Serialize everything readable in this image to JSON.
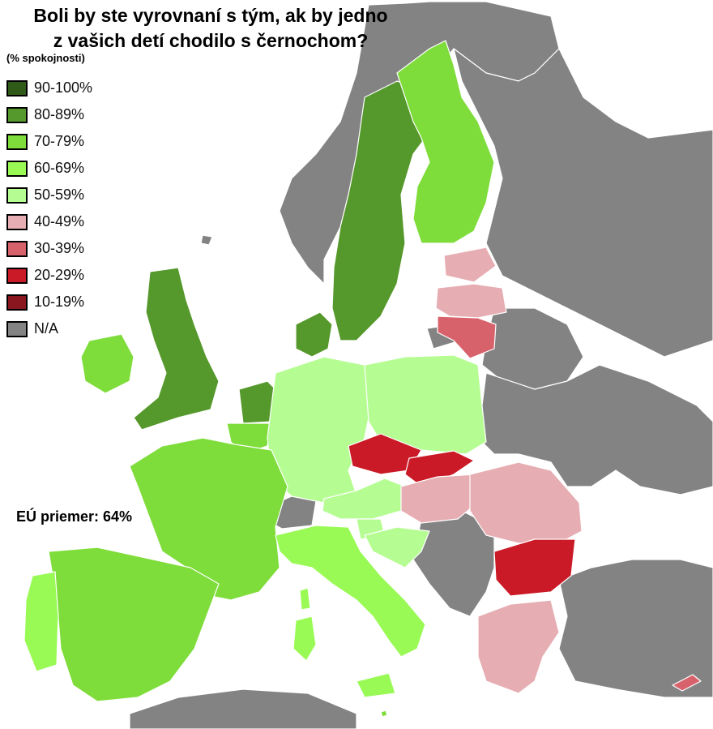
{
  "title_line1": "Boli by ste vyrovnaní s tým, ak by jedno",
  "title_line2": "z vašich detí chodilo s černochom?",
  "subtitle": "(% spokojnosti)",
  "legend": [
    {
      "label": "90-100%",
      "color": "#2f5a17"
    },
    {
      "label": "80-89%",
      "color": "#55982b"
    },
    {
      "label": "70-79%",
      "color": "#7edd3a"
    },
    {
      "label": "60-69%",
      "color": "#99fa55"
    },
    {
      "label": "50-59%",
      "color": "#b5fd92"
    },
    {
      "label": "40-49%",
      "color": "#e6adb2"
    },
    {
      "label": "30-39%",
      "color": "#d8626b"
    },
    {
      "label": "20-29%",
      "color": "#cb1a27"
    },
    {
      "label": "10-19%",
      "color": "#8a1620"
    },
    {
      "label": "N/A",
      "color": "#838383"
    }
  ],
  "eu_average": "EÚ priemer: 64%",
  "colors": {
    "sea": "#ffffff",
    "non_eu": "#838383",
    "border": "#ffffff"
  }
}
